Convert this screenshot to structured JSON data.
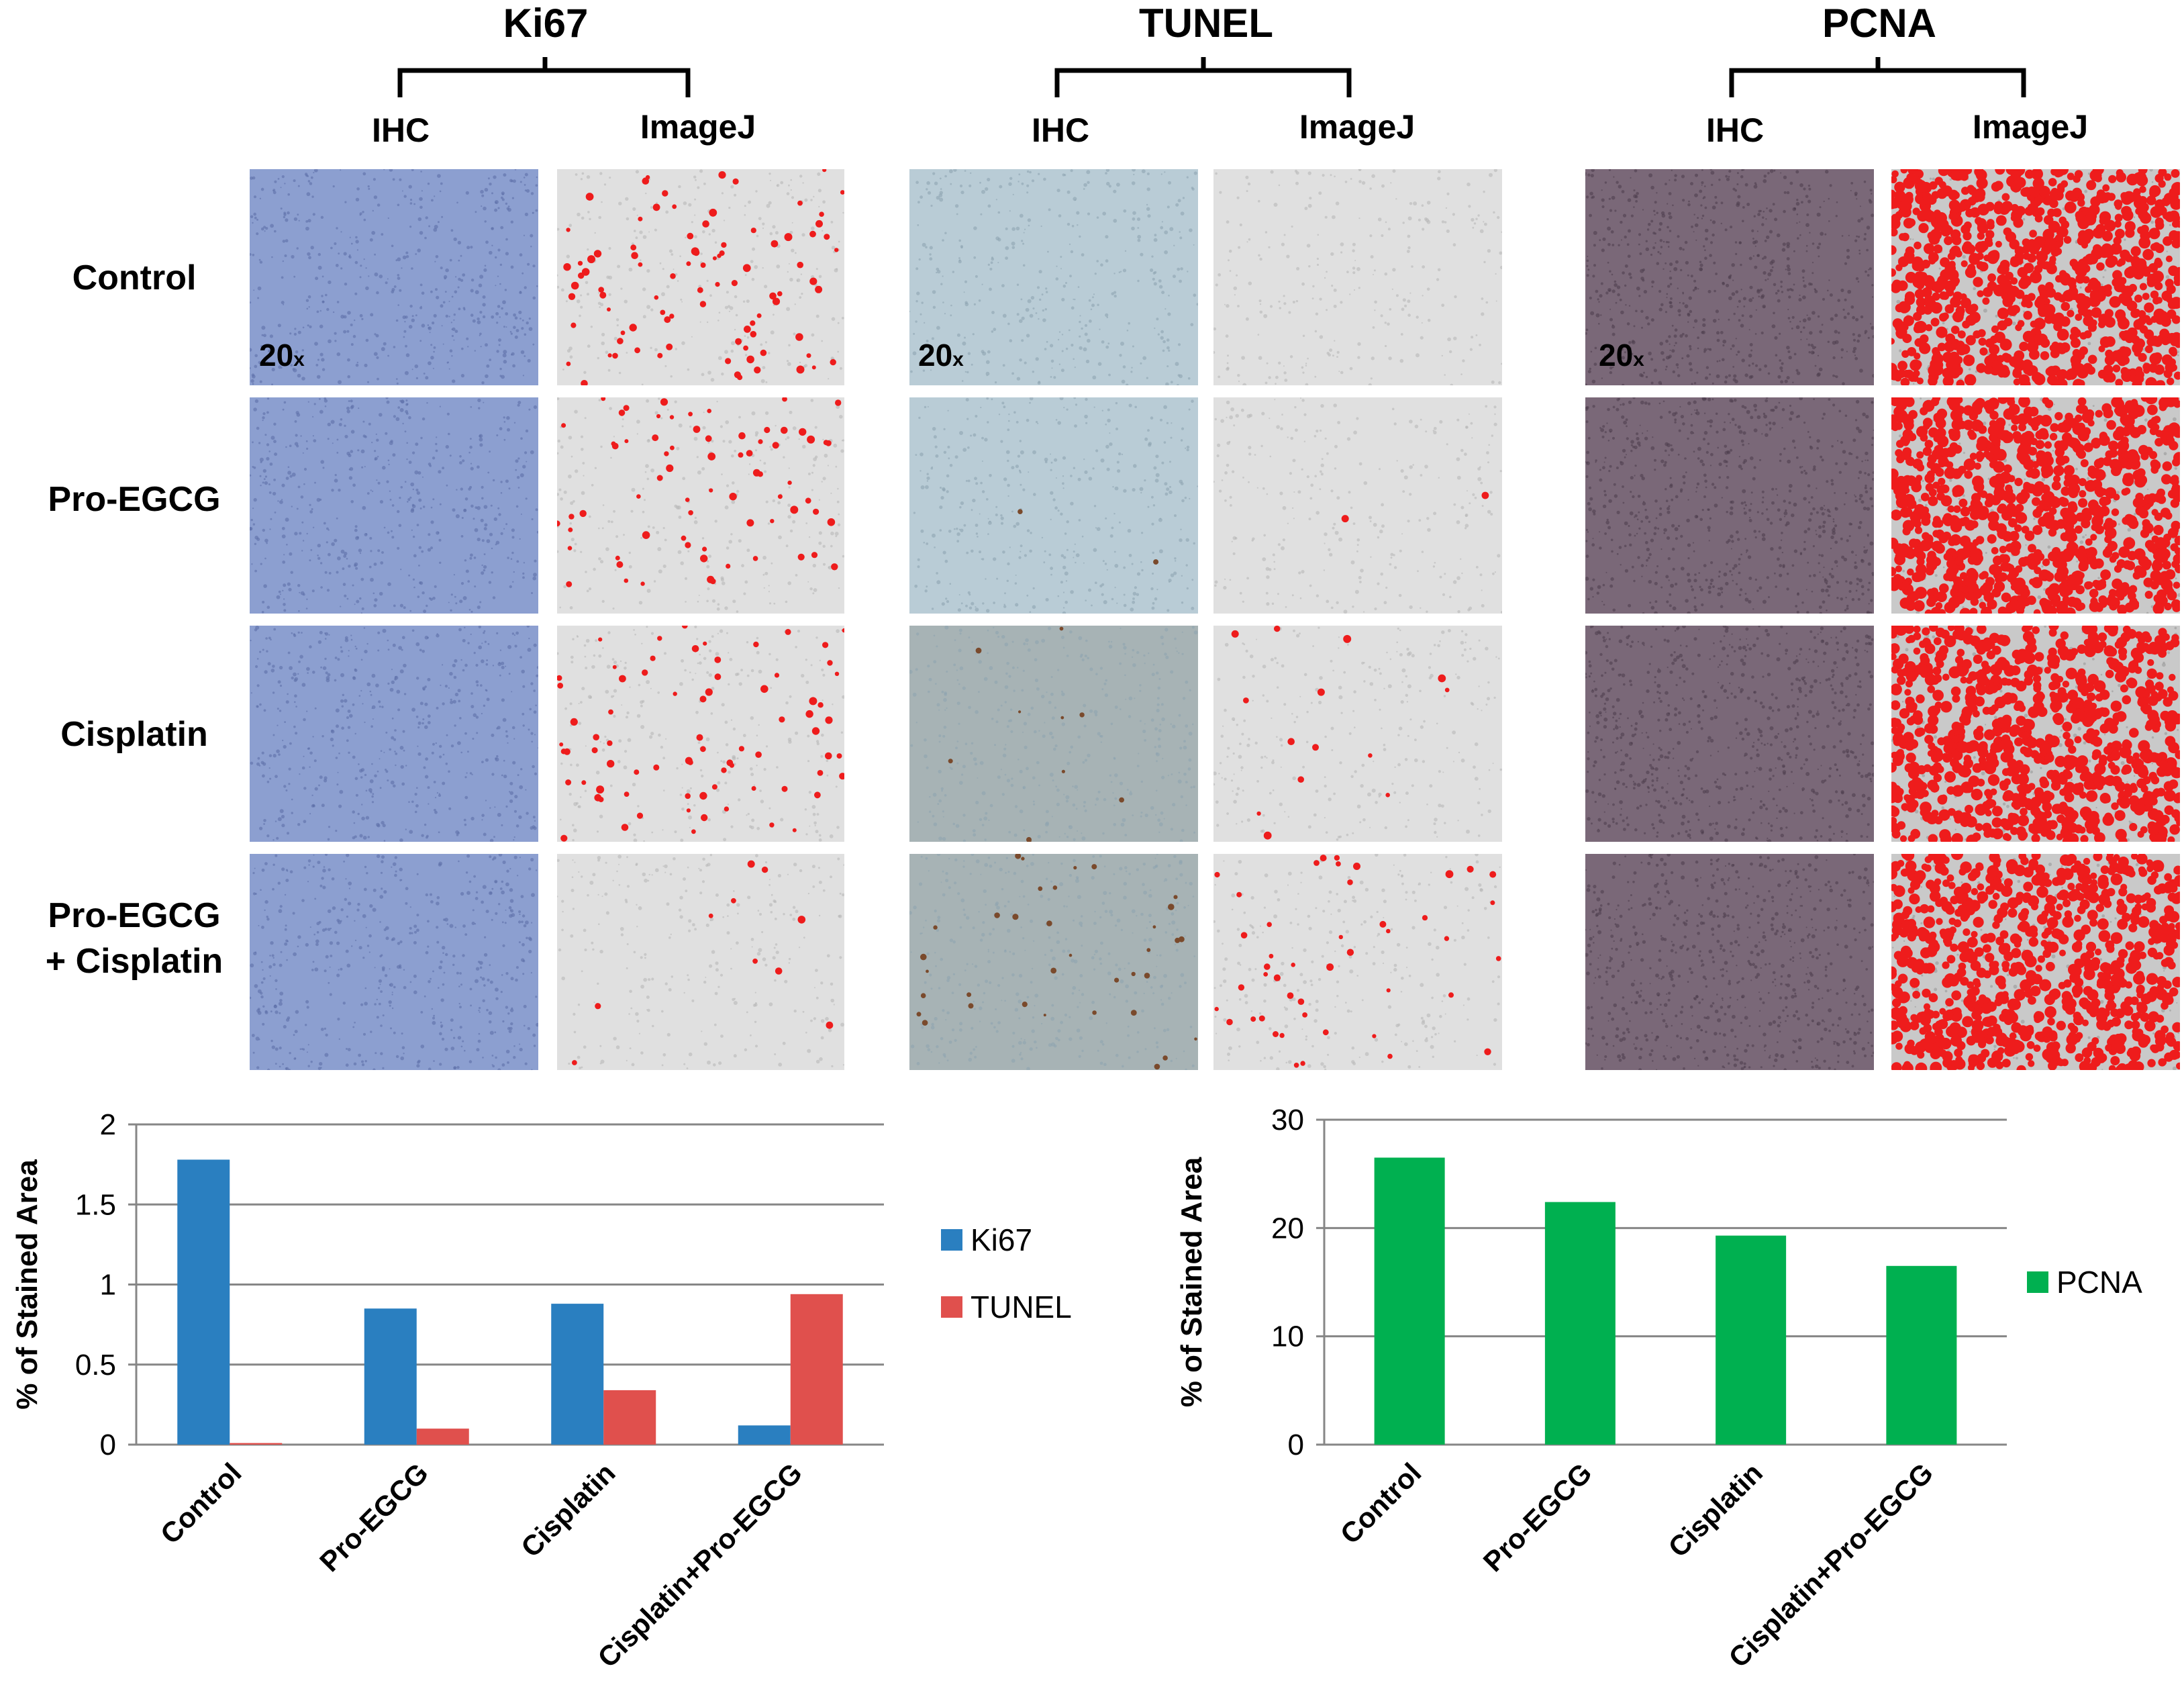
{
  "figure": {
    "groups": [
      {
        "title": "Ki67",
        "ihc_label": "IHC",
        "imagej_label": "ImageJ"
      },
      {
        "title": "TUNEL",
        "ihc_label": "IHC",
        "imagej_label": "ImageJ"
      },
      {
        "title": "PCNA",
        "ihc_label": "IHC",
        "imagej_label": "ImageJ"
      }
    ],
    "row_labels": [
      {
        "line1": "Control",
        "line2": ""
      },
      {
        "line1": "Pro-EGCG",
        "line2": ""
      },
      {
        "line1": "Cisplatin",
        "line2": ""
      },
      {
        "line1": "Pro-EGCG",
        "line2": "+ Cisplatin"
      }
    ],
    "magnification": "20",
    "magnification_suffix": "x"
  },
  "colors": {
    "ki67": "#2a7fc0",
    "tunel": "#e0504d",
    "pcna": "#00b050",
    "ihc_blue": "#8c9fd0",
    "tunel_bg": "#b9ccd6",
    "pcna_ihc": "#7a6878",
    "imagej_bg": "#e0e0e0",
    "stain_red": "#ee1c1c"
  },
  "chart_data": [
    {
      "type": "bar",
      "title": "",
      "ylabel": "% of Stained Area",
      "xlabel": "",
      "categories": [
        "Control",
        "Pro-EGCG",
        "Cisplatin",
        "Cisplatin+Pro-EGCG"
      ],
      "series": [
        {
          "name": "Ki67",
          "values": [
            1.78,
            0.85,
            0.88,
            0.12
          ]
        },
        {
          "name": "TUNEL",
          "values": [
            0.01,
            0.1,
            0.34,
            0.94
          ]
        }
      ],
      "ylim": [
        0,
        2
      ],
      "yticks": [
        0,
        0.5,
        1,
        1.5,
        2
      ],
      "ytick_labels": [
        "0",
        "0.5",
        "1",
        "1.5",
        "2"
      ],
      "grid": true,
      "legend": "right"
    },
    {
      "type": "bar",
      "title": "",
      "ylabel": "% of Stained Area",
      "xlabel": "",
      "categories": [
        "Control",
        "Pro-EGCG",
        "Cisplatin",
        "Cisplatin+Pro-EGCG"
      ],
      "series": [
        {
          "name": "PCNA",
          "values": [
            26.5,
            22.4,
            19.3,
            16.5
          ]
        }
      ],
      "ylim": [
        0,
        30
      ],
      "yticks": [
        0,
        10,
        20,
        30
      ],
      "ytick_labels": [
        "0",
        "10",
        "20",
        "30"
      ],
      "grid": true,
      "legend": "right"
    }
  ]
}
